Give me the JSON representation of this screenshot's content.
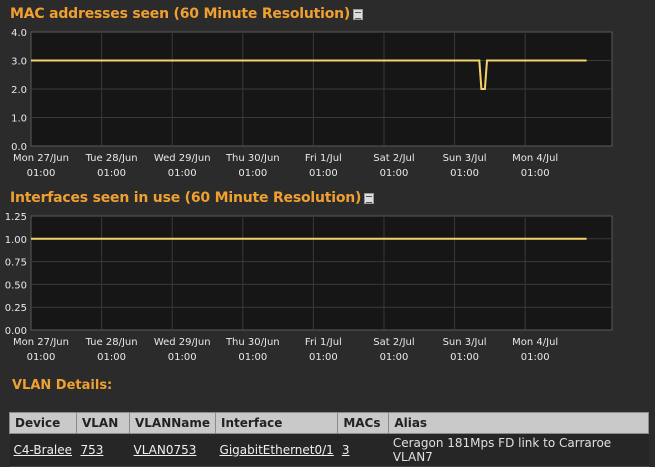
{
  "charts": {
    "mac": {
      "title": "MAC addresses seen (60 Minute Resolution)",
      "icon": "document-icon"
    },
    "interfaces": {
      "title": "Interfaces seen in use (60 Minute Resolution)",
      "icon": "document-icon"
    }
  },
  "chart_data": [
    {
      "type": "line",
      "title": "MAC addresses seen (60 Minute Resolution)",
      "xlabel": "",
      "ylabel": "",
      "ylim": [
        0,
        4
      ],
      "yticks": [
        "4.0",
        "3.0",
        "2.0",
        "1.0",
        "0.0"
      ],
      "xticks": [
        [
          "Mon 27/Jun",
          "01:00"
        ],
        [
          "Tue 28/Jun",
          "01:00"
        ],
        [
          "Wed 29/Jun",
          "01:00"
        ],
        [
          "Thu 30/Jun",
          "01:00"
        ],
        [
          "Fri 1/Jul",
          "01:00"
        ],
        [
          "Sat 2/Jul",
          "01:00"
        ],
        [
          "Sun 3/Jul",
          "01:00"
        ],
        [
          "Mon 4/Jul",
          "01:00"
        ]
      ],
      "series": [
        {
          "values": [
            [
              0,
              3
            ],
            [
              6.35,
              3
            ],
            [
              6.38,
              2
            ],
            [
              6.43,
              2
            ],
            [
              6.46,
              3
            ],
            [
              7.87,
              3
            ]
          ],
          "color": "#f5d36a"
        }
      ],
      "grid": true
    },
    {
      "type": "line",
      "title": "Interfaces seen in use (60 Minute Resolution)",
      "xlabel": "",
      "ylabel": "",
      "ylim": [
        0,
        1.25
      ],
      "yticks": [
        "1.25",
        "1.00",
        "0.75",
        "0.50",
        "0.25",
        "0.00"
      ],
      "xticks": [
        [
          "Mon 27/Jun",
          "01:00"
        ],
        [
          "Tue 28/Jun",
          "01:00"
        ],
        [
          "Wed 29/Jun",
          "01:00"
        ],
        [
          "Thu 30/Jun",
          "01:00"
        ],
        [
          "Fri 1/Jul",
          "01:00"
        ],
        [
          "Sat 2/Jul",
          "01:00"
        ],
        [
          "Sun 3/Jul",
          "01:00"
        ],
        [
          "Mon 4/Jul",
          "01:00"
        ]
      ],
      "series": [
        {
          "values": [
            [
              0,
              1
            ],
            [
              7.87,
              1
            ]
          ],
          "color": "#f5d36a"
        }
      ],
      "grid": true
    }
  ],
  "vlan": {
    "title": "VLAN Details:",
    "headers": [
      "Device",
      "VLAN",
      "VLANName",
      "Interface",
      "MACs",
      "Alias"
    ],
    "row": {
      "device": "C4-Bralee",
      "vlan": "753",
      "vlanname": "VLAN0753",
      "interface": "GigabitEthernet0/1",
      "macs": "3",
      "alias": "Ceragon 181Mps FD link to Carraroe VLAN7"
    }
  }
}
